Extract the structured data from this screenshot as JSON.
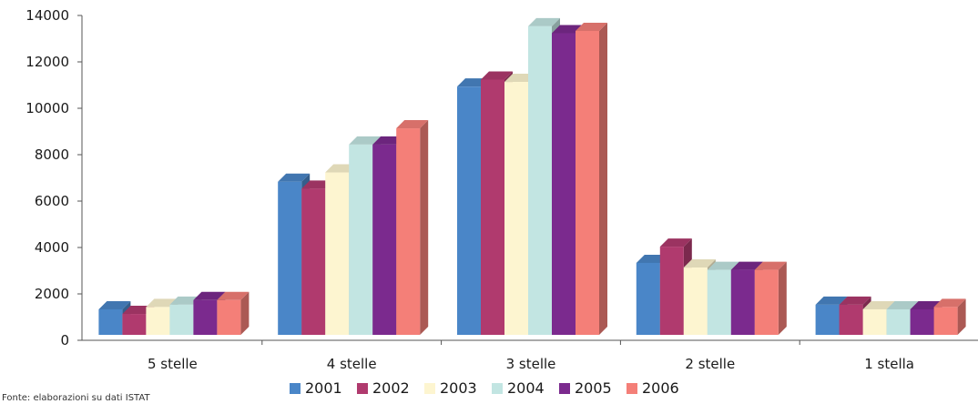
{
  "chart_data": {
    "type": "bar",
    "categories": [
      "5 stelle",
      "4 stelle",
      "3 stelle",
      "2 stelle",
      "1 stella"
    ],
    "series": [
      {
        "name": "2001",
        "values": [
          1100,
          6600,
          10700,
          3100,
          1300
        ],
        "color": "#4a86c8"
      },
      {
        "name": "2002",
        "values": [
          900,
          6300,
          11000,
          3800,
          1300
        ],
        "color": "#b03a6e"
      },
      {
        "name": "2003",
        "values": [
          1200,
          7000,
          10900,
          2900,
          1100
        ],
        "color": "#fdf5d0"
      },
      {
        "name": "2004",
        "values": [
          1300,
          8200,
          13300,
          2800,
          1100
        ],
        "color": "#c2e5e2"
      },
      {
        "name": "2005",
        "values": [
          1500,
          8200,
          13000,
          2800,
          1100
        ],
        "color": "#7b2a8e"
      },
      {
        "name": "2006",
        "values": [
          1500,
          8900,
          13100,
          2800,
          1200
        ],
        "color": "#f47f78"
      }
    ],
    "yticks": [
      0,
      2000,
      4000,
      6000,
      8000,
      10000,
      12000,
      14000
    ],
    "ylim": [
      0,
      14000
    ],
    "legend_position": "bottom",
    "grid": false
  },
  "source_note": "Fonte: elaborazioni su dati ISTAT"
}
